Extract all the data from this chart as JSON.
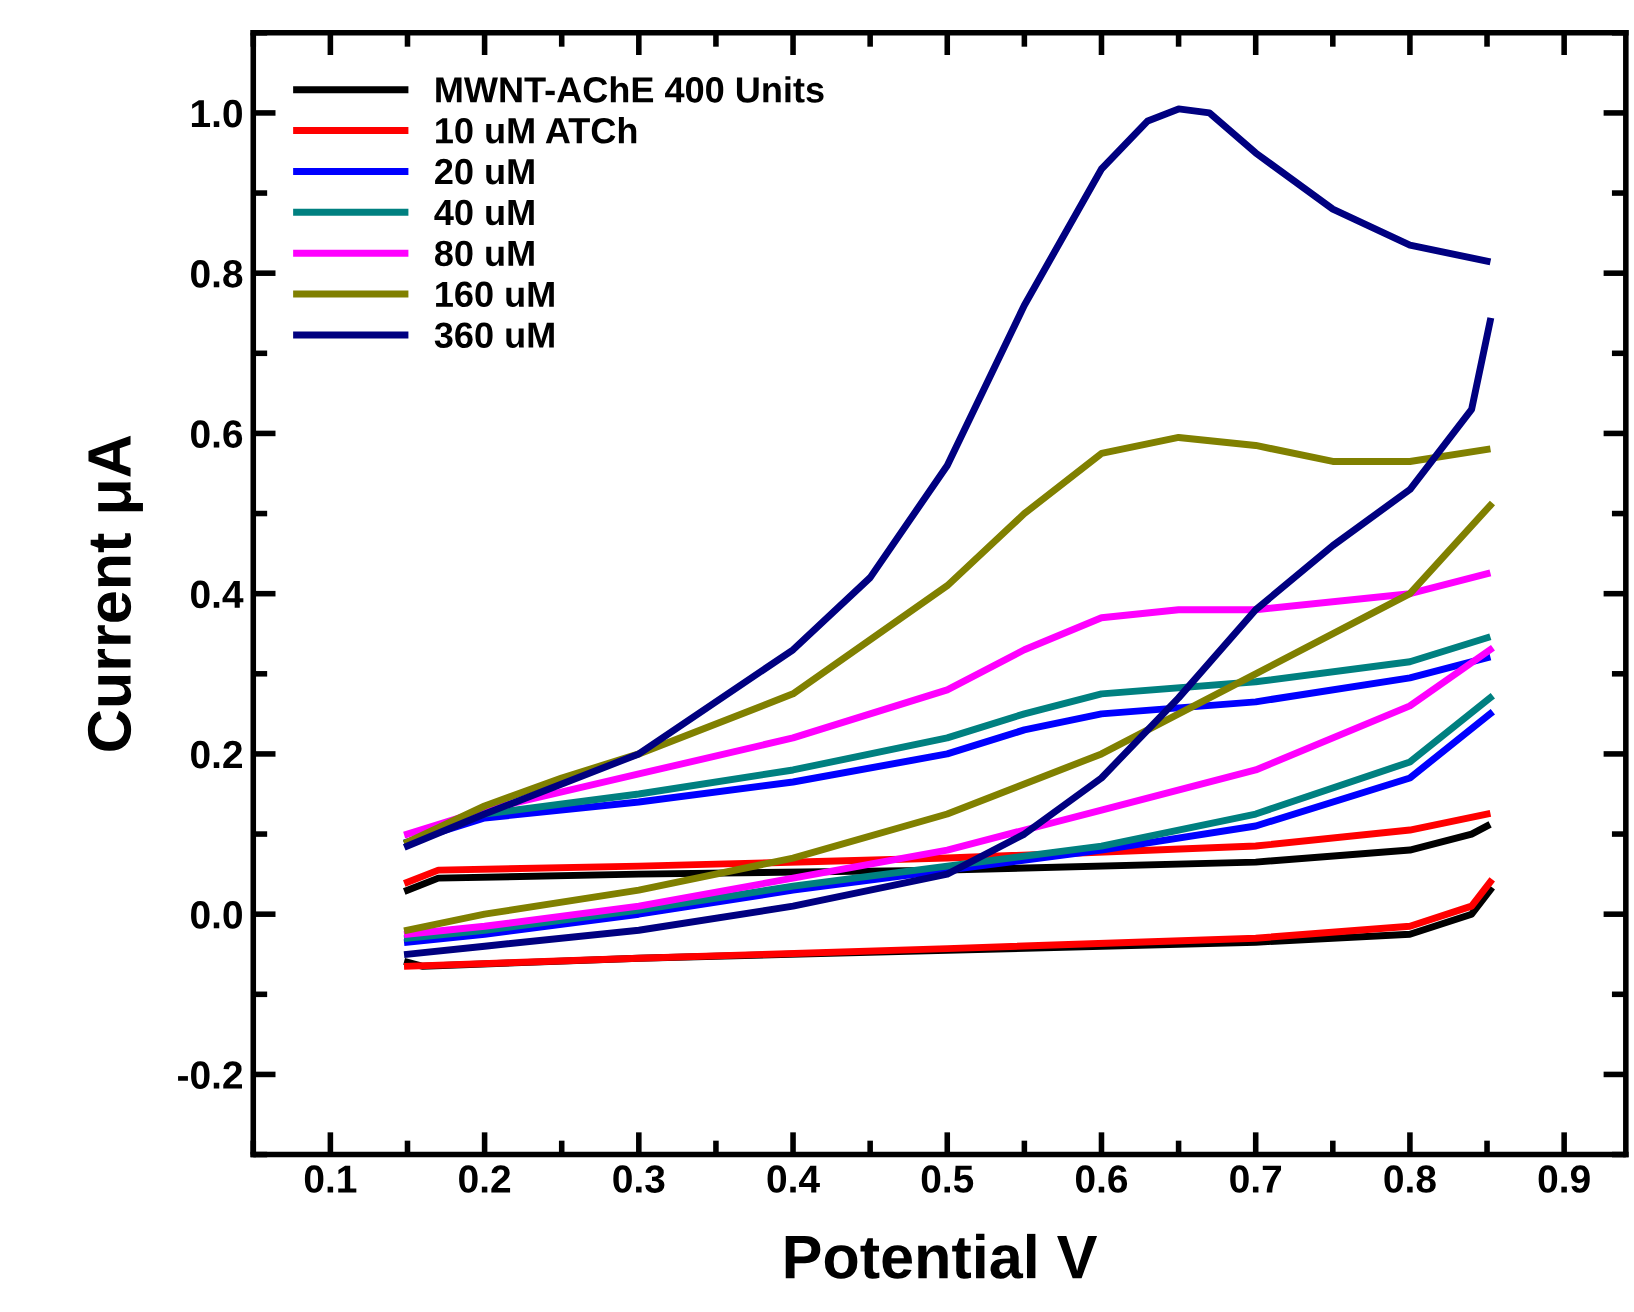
{
  "chart_data": {
    "type": "line",
    "xlabel": "Potential V",
    "ylabel": "Current μA",
    "xlim": [
      0.05,
      0.94
    ],
    "ylim": [
      -0.3,
      1.1
    ],
    "xticks": [
      0.1,
      0.2,
      0.3,
      0.4,
      0.5,
      0.6,
      0.7,
      0.8,
      0.9
    ],
    "yticks": [
      {
        "value": -0.2,
        "label": "-0.2"
      },
      {
        "value": 0,
        "label": "0.0"
      },
      {
        "value": 0.2,
        "label": "0.2"
      },
      {
        "value": 0.4,
        "label": "0.4"
      },
      {
        "value": 0.6,
        "label": "0.6"
      },
      {
        "value": 0.8,
        "label": "0.8"
      },
      {
        "value": 1,
        "label": "1.0"
      }
    ],
    "grid": false,
    "legend": "top left",
    "marker": "none",
    "line_style": "solid",
    "series": [
      {
        "name": "MWNT-AChE 400 Units",
        "color": "#000000",
        "x": [
          0.15,
          0.17,
          0.3,
          0.5,
          0.7,
          0.8,
          0.84,
          0.85
        ],
        "values": [
          0.03,
          0.045,
          0.05,
          0.055,
          0.065,
          0.08,
          0.1,
          0.11
        ]
      },
      {
        "color": "#000000",
        "x": [
          0.852,
          0.84,
          0.8,
          0.7,
          0.5,
          0.3,
          0.16,
          0.15
        ],
        "values": [
          0.03,
          0.0,
          -0.025,
          -0.035,
          -0.045,
          -0.055,
          -0.065,
          -0.06
        ]
      },
      {
        "name": "10 uM ATCh",
        "color": "#ff0000",
        "x": [
          0.15,
          0.17,
          0.3,
          0.5,
          0.7,
          0.8,
          0.85
        ],
        "values": [
          0.04,
          0.055,
          0.06,
          0.07,
          0.085,
          0.105,
          0.125
        ]
      },
      {
        "color": "#ff0000",
        "x": [
          0.852,
          0.84,
          0.8,
          0.7,
          0.5,
          0.3,
          0.15
        ],
        "values": [
          0.04,
          0.01,
          -0.015,
          -0.03,
          -0.043,
          -0.055,
          -0.065
        ]
      },
      {
        "name": "20 uM",
        "color": "#0000ff",
        "x": [
          0.15,
          0.2,
          0.3,
          0.4,
          0.5,
          0.55,
          0.6,
          0.7,
          0.8,
          0.85
        ],
        "values": [
          0.09,
          0.12,
          0.14,
          0.165,
          0.2,
          0.23,
          0.25,
          0.265,
          0.295,
          0.32
        ]
      },
      {
        "color": "#0000ff",
        "x": [
          0.852,
          0.8,
          0.7,
          0.6,
          0.5,
          0.4,
          0.3,
          0.2,
          0.15
        ],
        "values": [
          0.25,
          0.17,
          0.11,
          0.08,
          0.055,
          0.03,
          0.0,
          -0.025,
          -0.035
        ]
      },
      {
        "name": "40 uM",
        "color": "#008080",
        "x": [
          0.15,
          0.2,
          0.3,
          0.4,
          0.5,
          0.55,
          0.6,
          0.7,
          0.8,
          0.85
        ],
        "values": [
          0.09,
          0.125,
          0.15,
          0.18,
          0.22,
          0.25,
          0.275,
          0.29,
          0.315,
          0.345
        ]
      },
      {
        "color": "#008080",
        "x": [
          0.852,
          0.8,
          0.7,
          0.6,
          0.5,
          0.4,
          0.3,
          0.2,
          0.15
        ],
        "values": [
          0.27,
          0.19,
          0.125,
          0.085,
          0.06,
          0.035,
          0.005,
          -0.02,
          -0.03
        ]
      },
      {
        "name": "80 uM",
        "color": "#ff00ff",
        "x": [
          0.15,
          0.2,
          0.3,
          0.4,
          0.5,
          0.55,
          0.6,
          0.65,
          0.7,
          0.8,
          0.85
        ],
        "values": [
          0.1,
          0.13,
          0.175,
          0.22,
          0.28,
          0.33,
          0.37,
          0.38,
          0.38,
          0.4,
          0.425
        ]
      },
      {
        "color": "#ff00ff",
        "x": [
          0.852,
          0.8,
          0.7,
          0.6,
          0.5,
          0.4,
          0.3,
          0.2,
          0.15
        ],
        "values": [
          0.33,
          0.26,
          0.18,
          0.13,
          0.08,
          0.045,
          0.01,
          -0.015,
          -0.025
        ]
      },
      {
        "name": "160 uM",
        "color": "#808000",
        "x": [
          0.15,
          0.2,
          0.25,
          0.3,
          0.4,
          0.5,
          0.55,
          0.6,
          0.65,
          0.7,
          0.75,
          0.8,
          0.85
        ],
        "values": [
          0.09,
          0.135,
          0.17,
          0.2,
          0.275,
          0.41,
          0.5,
          0.575,
          0.595,
          0.585,
          0.565,
          0.565,
          0.58
        ]
      },
      {
        "color": "#808000",
        "x": [
          0.852,
          0.8,
          0.7,
          0.6,
          0.5,
          0.4,
          0.3,
          0.2,
          0.15
        ],
        "values": [
          0.51,
          0.4,
          0.3,
          0.2,
          0.125,
          0.07,
          0.03,
          0.0,
          -0.02
        ]
      },
      {
        "name": "360 uM",
        "color": "#000080",
        "x": [
          0.15,
          0.2,
          0.3,
          0.4,
          0.45,
          0.5,
          0.55,
          0.6,
          0.63,
          0.65,
          0.67,
          0.7,
          0.75,
          0.8,
          0.85
        ],
        "values": [
          0.085,
          0.125,
          0.2,
          0.33,
          0.42,
          0.56,
          0.76,
          0.93,
          0.99,
          1.005,
          1.0,
          0.95,
          0.88,
          0.835,
          0.815
        ]
      },
      {
        "color": "#000080",
        "x": [
          0.852,
          0.84,
          0.8,
          0.75,
          0.7,
          0.65,
          0.6,
          0.55,
          0.5,
          0.4,
          0.3,
          0.2,
          0.15
        ],
        "values": [
          0.74,
          0.63,
          0.53,
          0.46,
          0.38,
          0.27,
          0.17,
          0.1,
          0.05,
          0.01,
          -0.02,
          -0.04,
          -0.05
        ]
      }
    ]
  }
}
